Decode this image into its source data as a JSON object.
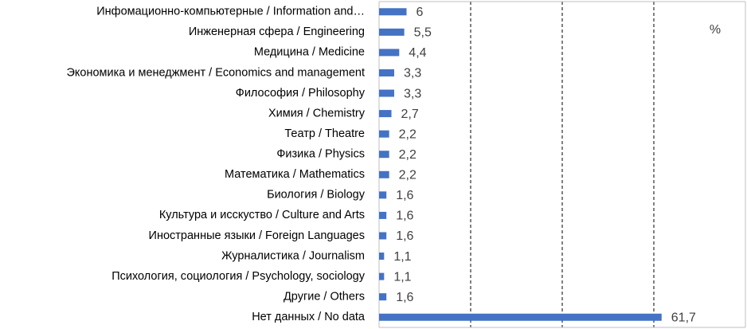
{
  "chart_data": {
    "type": "hbar",
    "annotation": "%",
    "categories": [
      "Инфомационно-компьютерные / Information and…",
      "Инженерная сфера / Engineering",
      "Медицина / Medicine",
      "Экономика и менеджмент / Economics and management",
      "Философия / Philosophy",
      "Химия / Chemistry",
      "Театр / Theatre",
      "Физика / Physics",
      "Математика / Mathematics",
      "Биология / Biology",
      "Культура и исскуство / Culture and Arts",
      "Иностранные языки / Foreign Languages",
      "Журналистика / Journalism",
      "Психология, социология / Psychology, sociology",
      "Другие / Others",
      "Нет данных / No data"
    ],
    "values": [
      6,
      5.5,
      4.4,
      3.3,
      3.3,
      2.7,
      2.2,
      2.2,
      2.2,
      1.6,
      1.6,
      1.6,
      1.1,
      1.1,
      1.6,
      61.7
    ],
    "value_labels": [
      "6",
      "5,5",
      "4,4",
      "3,3",
      "3,3",
      "2,7",
      "2,2",
      "2,2",
      "2,2",
      "1,6",
      "1,6",
      "1,6",
      "1,1",
      "1,1",
      "1,6",
      "61,7"
    ],
    "color": "#4472c4",
    "xlim": [
      0,
      80
    ],
    "xticks": [
      0,
      20,
      40,
      60,
      80
    ],
    "grid": true
  }
}
